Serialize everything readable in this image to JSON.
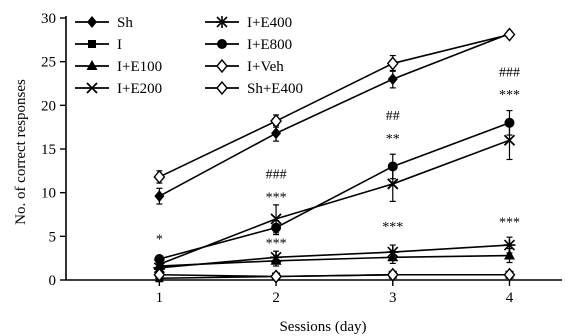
{
  "chart_data": {
    "type": "line",
    "xlabel": "Sessions (day)",
    "ylabel": "No. of correct responses",
    "x": [
      1,
      2,
      3,
      4
    ],
    "x_ticks": [
      1,
      2,
      3,
      4
    ],
    "xlim": [
      0.2,
      4.45
    ],
    "ylim": [
      0,
      30
    ],
    "y_ticks": [
      0,
      5,
      10,
      15,
      20,
      25,
      30
    ],
    "grid": false,
    "legend_position": "top-left",
    "series": [
      {
        "name": "Sh",
        "marker": "diamond-filled",
        "values": [
          9.6,
          16.8,
          23.0,
          28.2
        ],
        "err": [
          0.9,
          0.9,
          1.0,
          0.3
        ]
      },
      {
        "name": "I",
        "marker": "square-filled",
        "values": [
          0.2,
          0.4,
          0.6,
          0.6
        ],
        "err": [
          0.2,
          0.2,
          0.2,
          0.2
        ]
      },
      {
        "name": "I+E100",
        "marker": "triangle-filled",
        "values": [
          1.6,
          2.2,
          2.6,
          2.8
        ],
        "err": [
          0.5,
          0.6,
          0.7,
          0.8
        ]
      },
      {
        "name": "I+E200",
        "marker": "x",
        "values": [
          1.8,
          7.0,
          11.0,
          16.0
        ],
        "err": [
          0.6,
          1.6,
          2.0,
          2.2
        ]
      },
      {
        "name": "I+E400",
        "marker": "asterisk",
        "values": [
          1.4,
          2.6,
          3.2,
          4.0
        ],
        "err": [
          0.5,
          0.7,
          0.8,
          0.9
        ]
      },
      {
        "name": "I+E800",
        "marker": "circle-filled",
        "values": [
          2.4,
          6.0,
          13.0,
          18.0
        ],
        "err": [
          0.4,
          0.8,
          1.4,
          1.4
        ]
      },
      {
        "name": "I+Veh",
        "marker": "diamond-open",
        "values": [
          0.6,
          0.4,
          0.6,
          0.6
        ],
        "err": [
          0.2,
          0.2,
          0.2,
          0.2
        ]
      },
      {
        "name": "Sh+E400",
        "marker": "diamond-open",
        "values": [
          11.8,
          18.2,
          24.8,
          28.1
        ],
        "err": [
          0.7,
          0.7,
          0.9,
          0.3
        ]
      }
    ],
    "annotations": [
      {
        "x": 1,
        "y": 4.2,
        "text": "*"
      },
      {
        "x": 2,
        "y": 9.0,
        "text": "***"
      },
      {
        "x": 2,
        "y": 11.6,
        "text": "###"
      },
      {
        "x": 2,
        "y": 3.7,
        "text": "***"
      },
      {
        "x": 3,
        "y": 15.7,
        "text": "**"
      },
      {
        "x": 3,
        "y": 18.3,
        "text": "##"
      },
      {
        "x": 3,
        "y": 5.6,
        "text": "***"
      },
      {
        "x": 4,
        "y": 20.7,
        "text": "***"
      },
      {
        "x": 4,
        "y": 23.3,
        "text": "###"
      },
      {
        "x": 4,
        "y": 6.1,
        "text": "***"
      }
    ],
    "colors": {
      "line": "#000000"
    }
  }
}
